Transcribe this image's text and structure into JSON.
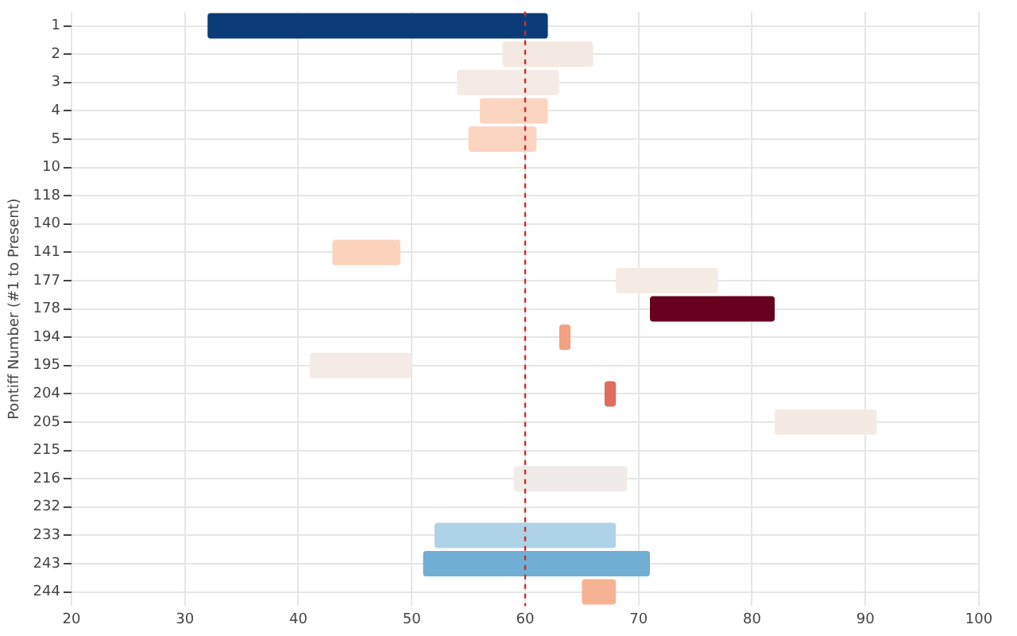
{
  "chart_data": {
    "type": "bar",
    "orientation": "horizontal",
    "ylabel": "Pontiff Number (#1 to Present)",
    "categories": [
      "1",
      "2",
      "3",
      "4",
      "5",
      "10",
      "118",
      "140",
      "141",
      "177",
      "178",
      "194",
      "195",
      "204",
      "205",
      "215",
      "216",
      "232",
      "233",
      "243",
      "244"
    ],
    "base": [
      32,
      58,
      54,
      56,
      55,
      null,
      null,
      null,
      43,
      68,
      71,
      63,
      41,
      67,
      82,
      null,
      59,
      null,
      52,
      51,
      65
    ],
    "values": [
      30,
      8,
      9,
      6,
      6,
      null,
      null,
      null,
      6,
      9,
      11,
      1,
      9,
      1,
      9,
      null,
      10,
      null,
      16,
      20,
      3
    ],
    "colors": [
      "#0b3c78",
      "#f4e9e2",
      "#f4ebe6",
      "#fbd5c0",
      "#fbd5c0",
      "#f4ebe6",
      "#f4ebe6",
      "#f4ebe6",
      "#fbd3bd",
      "#f5ebe5",
      "#67001f",
      "#f2a182",
      "#f4ebe6",
      "#e06d5b",
      "#f4eae4",
      "#f4ebe6",
      "#f0ebe8",
      "#f4ebe6",
      "#afd3e6",
      "#70afd3",
      "#f6b393"
    ],
    "xlim": [
      20,
      100
    ],
    "xticks": [
      20,
      30,
      40,
      50,
      60,
      70,
      80,
      90,
      100
    ],
    "ref_lines": [
      {
        "axis": "x",
        "value": 60,
        "color": "#d62728",
        "line_style": "dotted"
      }
    ],
    "grid": true,
    "legend": false
  }
}
